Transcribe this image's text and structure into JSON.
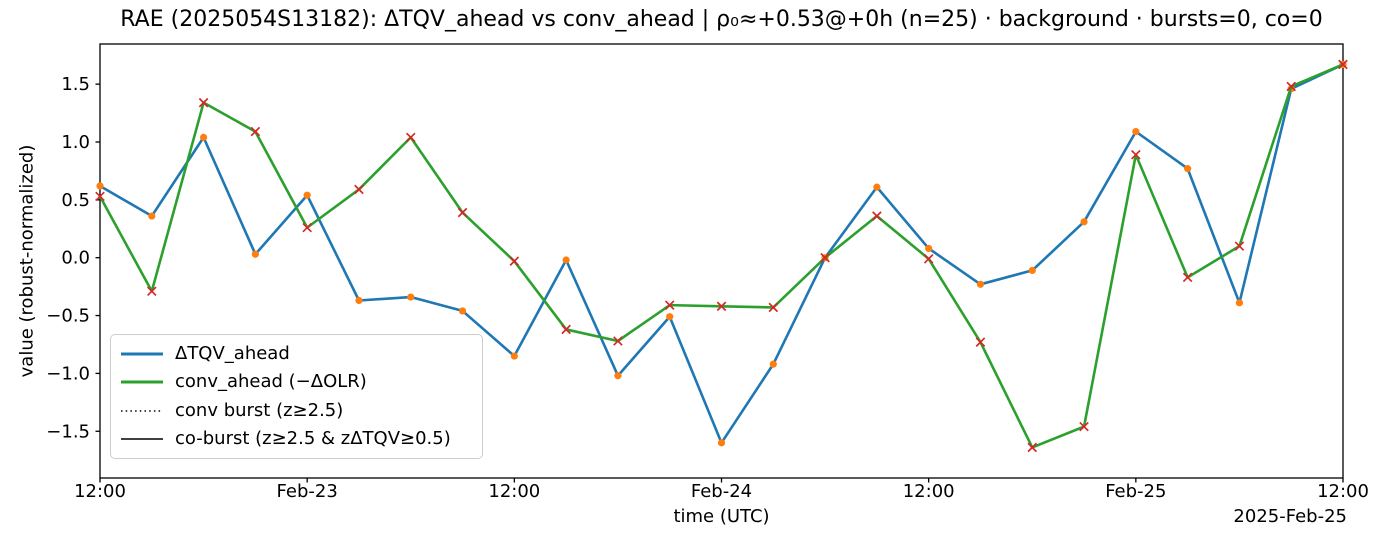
{
  "title": "RAE (2025054S13182): ΔTQV_ahead vs conv_ahead | ρ₀≈+0.53@+0h (n=25) · background · bursts=0, co=0",
  "axes": {
    "xlabel": "time (UTC)",
    "ylabel": "value (robust-normalized)",
    "corner_date": "2025-Feb-25",
    "x_tick_hours": [
      0,
      12,
      24,
      36,
      48,
      60,
      72
    ],
    "x_tick_labels": [
      "12:00",
      "Feb-23",
      "12:00",
      "Feb-24",
      "12:00",
      "Feb-25",
      "12:00"
    ],
    "y_tick_values": [
      1.5,
      1.0,
      0.5,
      0.0,
      -0.5,
      -1.0,
      -1.5
    ],
    "y_tick_labels": [
      "1.5",
      "1.0",
      "0.5",
      "0.0",
      "−0.5",
      "−1.0",
      "−1.5"
    ]
  },
  "legend": {
    "items": [
      {
        "label": "ΔTQV_ahead",
        "style": "solid",
        "color": "#1f77b4",
        "width": 3
      },
      {
        "label": "conv_ahead (−ΔOLR)",
        "style": "solid",
        "color": "#2ca02c",
        "width": 3
      },
      {
        "label": "conv burst (z≥2.5)",
        "style": "dotted",
        "color": "#000000",
        "width": 1.6
      },
      {
        "label": "co-burst (z≥2.5 & zΔTQV≥0.5)",
        "style": "solid",
        "color": "#000000",
        "width": 1.6
      }
    ]
  },
  "chart_data": {
    "type": "line",
    "title": "RAE (2025054S13182): ΔTQV_ahead vs conv_ahead | ρ₀≈+0.53@+0h (n=25) · background · bursts=0, co=0",
    "xlabel": "time (UTC)",
    "ylabel": "value (robust-normalized)",
    "x_start": "2025-Feb-22 12:00 UTC",
    "x_end": "2025-Feb-25 12:00 UTC",
    "x_step_hours": 3,
    "n": 25,
    "rho0": "+0.53",
    "lag": "+0h",
    "regime": "background",
    "bursts": 0,
    "co_bursts": 0,
    "x_hours": [
      0,
      3,
      6,
      9,
      12,
      15,
      18,
      21,
      24,
      27,
      30,
      33,
      36,
      39,
      42,
      45,
      48,
      51,
      54,
      57,
      60,
      63,
      66,
      69,
      72
    ],
    "ylim": [
      -1.9,
      1.85
    ],
    "grid": false,
    "legend_position": "lower left",
    "series": [
      {
        "name": "ΔTQV_ahead",
        "color": "#1f77b4",
        "marker": "circle",
        "marker_color": "#ff7f0e",
        "values": [
          0.62,
          0.36,
          1.04,
          0.03,
          0.54,
          -0.37,
          -0.34,
          -0.46,
          -0.85,
          -0.02,
          -1.02,
          -0.51,
          -1.6,
          -0.92,
          0.0,
          0.61,
          0.08,
          -0.23,
          -0.11,
          0.31,
          1.09,
          0.77,
          -0.39,
          1.46,
          1.67
        ]
      },
      {
        "name": "conv_ahead (−ΔOLR)",
        "color": "#2ca02c",
        "marker": "x",
        "marker_color": "#d62728",
        "values": [
          0.53,
          -0.29,
          1.34,
          1.09,
          0.26,
          0.59,
          1.04,
          0.39,
          -0.03,
          -0.62,
          -0.72,
          -0.41,
          -0.42,
          -0.43,
          0.0,
          0.36,
          -0.01,
          -0.73,
          -1.64,
          -1.46,
          0.89,
          -0.17,
          0.1,
          1.48,
          1.67
        ]
      }
    ]
  }
}
